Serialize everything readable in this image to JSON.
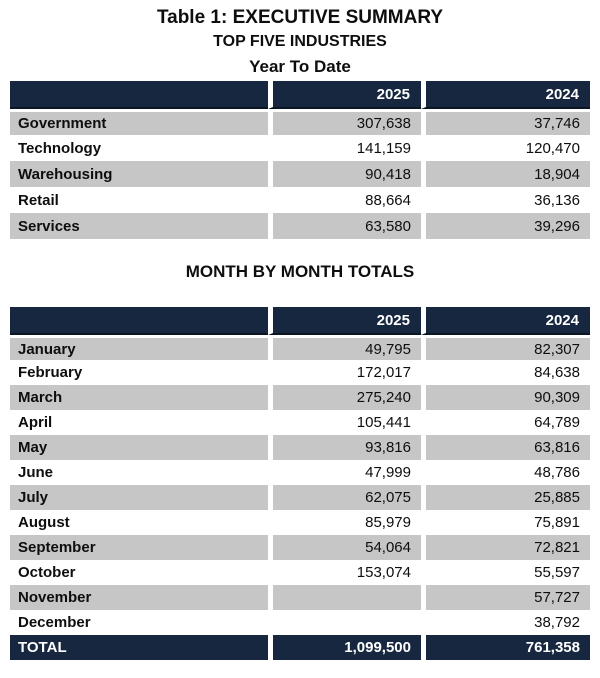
{
  "colors": {
    "header_bg": "#16273F",
    "header_border": "#0B1624",
    "row_alt": "#C6C6C6",
    "total_bg": "#16273F",
    "text": "#0E0E0E",
    "header_text": "#FFFFFF"
  },
  "header": {
    "title": "Table 1: EXECUTIVE SUMMARY",
    "subtitle": "TOP FIVE INDUSTRIES"
  },
  "industries_table": {
    "caption": "Year To Date",
    "columns": [
      "",
      "2025",
      "2024"
    ],
    "rows": [
      {
        "label": "Government",
        "y2025": "307,638",
        "y2024": "37,746"
      },
      {
        "label": "Technology",
        "y2025": "141,159",
        "y2024": "120,470"
      },
      {
        "label": "Warehousing",
        "y2025": "90,418",
        "y2024": "18,904"
      },
      {
        "label": "Retail",
        "y2025": "88,664",
        "y2024": "36,136"
      },
      {
        "label": "Services",
        "y2025": "63,580",
        "y2024": "39,296"
      }
    ]
  },
  "monthly_table": {
    "caption": "MONTH BY MONTH TOTALS",
    "columns": [
      "",
      "2025",
      "2024"
    ],
    "rows": [
      {
        "label": "January",
        "y2025": "49,795",
        "y2024": "82,307"
      },
      {
        "label": "February",
        "y2025": "172,017",
        "y2024": "84,638"
      },
      {
        "label": "March",
        "y2025": "275,240",
        "y2024": "90,309"
      },
      {
        "label": "April",
        "y2025": "105,441",
        "y2024": "64,789"
      },
      {
        "label": "May",
        "y2025": "93,816",
        "y2024": "63,816"
      },
      {
        "label": "June",
        "y2025": "47,999",
        "y2024": "48,786"
      },
      {
        "label": "July",
        "y2025": "62,075",
        "y2024": "25,885"
      },
      {
        "label": "August",
        "y2025": "85,979",
        "y2024": "75,891"
      },
      {
        "label": "September",
        "y2025": "54,064",
        "y2024": "72,821"
      },
      {
        "label": "October",
        "y2025": "153,074",
        "y2024": "55,597"
      },
      {
        "label": "November",
        "y2025": "",
        "y2024": "57,727"
      },
      {
        "label": "December",
        "y2025": "",
        "y2024": "38,792"
      }
    ],
    "total": {
      "label": "TOTAL",
      "y2025": "1,099,500",
      "y2024": "761,358"
    }
  }
}
